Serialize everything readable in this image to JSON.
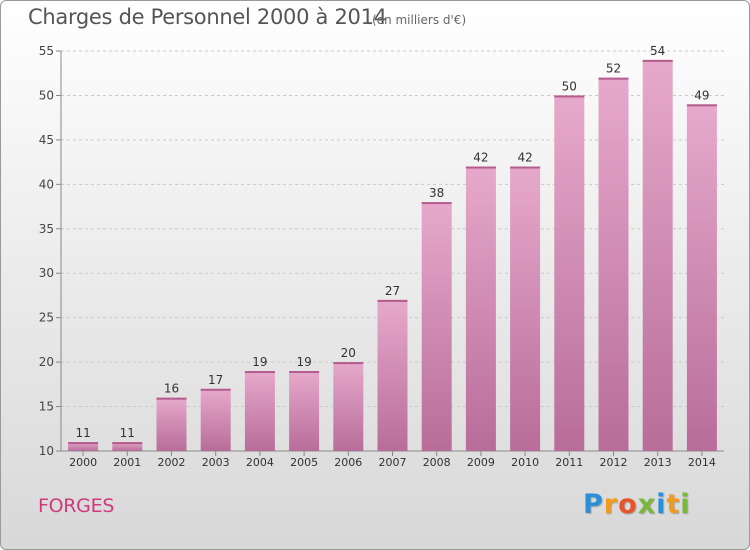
{
  "header": {
    "title": "Charges de Personnel 2000 à 2014",
    "unit": "(en milliers d'€)"
  },
  "footer": {
    "place": "FORGES",
    "logo_letters": [
      "P",
      "r",
      "o",
      "x",
      "i",
      "t",
      "i"
    ],
    "logo_colors": [
      "#2b8fd6",
      "#f19b1e",
      "#e8552b",
      "#79b83b",
      "#2b8fd6",
      "#f19b1e",
      "#79b83b"
    ]
  },
  "chart_data": {
    "type": "bar",
    "categories": [
      "2000",
      "2001",
      "2002",
      "2003",
      "2004",
      "2005",
      "2006",
      "2007",
      "2008",
      "2009",
      "2010",
      "2011",
      "2012",
      "2013",
      "2014"
    ],
    "values": [
      11,
      11,
      16,
      17,
      19,
      19,
      20,
      27,
      38,
      42,
      42,
      50,
      52,
      54,
      49
    ],
    "ylim": [
      10,
      55
    ],
    "yticks": [
      10,
      15,
      20,
      25,
      30,
      35,
      40,
      45,
      50,
      55
    ],
    "grid": "horizontal dashed",
    "bar_color": "#d76fa8",
    "bar_color_light": "#e9a8cc"
  }
}
